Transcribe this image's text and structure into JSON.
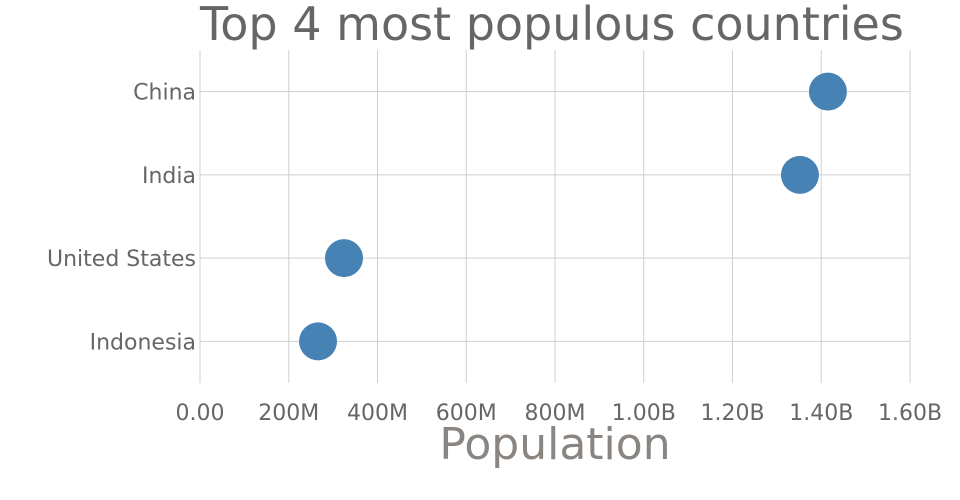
{
  "chart_data": {
    "type": "dot",
    "title": "Top 4 most populous countries",
    "categories": [
      "China",
      "India",
      "United States",
      "Indonesia"
    ],
    "values": [
      1415000000,
      1352000000,
      324500000,
      266000000
    ],
    "color": "#4682b4",
    "x_label": "Population",
    "xlim": [
      0,
      1600000000
    ],
    "xticks": [
      {
        "value": 0,
        "label": "0.00"
      },
      {
        "value": 200000000,
        "label": "200M"
      },
      {
        "value": 400000000,
        "label": "400M"
      },
      {
        "value": 600000000,
        "label": "600M"
      },
      {
        "value": 800000000,
        "label": "800M"
      },
      {
        "value": 1000000000,
        "label": "1.00B"
      },
      {
        "value": 1200000000,
        "label": "1.20B"
      },
      {
        "value": 1400000000,
        "label": "1.40B"
      },
      {
        "value": 1600000000,
        "label": "1.60B"
      }
    ],
    "grid": true
  }
}
